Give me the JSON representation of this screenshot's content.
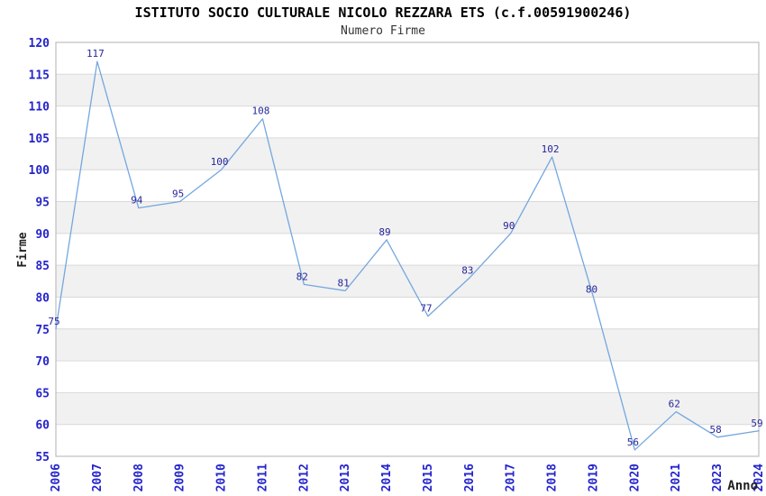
{
  "chart_data": {
    "type": "line",
    "title": "ISTITUTO SOCIO CULTURALE NICOLO REZZARA ETS (c.f.00591900246)",
    "subtitle": "Numero Firme",
    "xlabel": "Anno",
    "ylabel": "Firme",
    "categories": [
      "2006",
      "2007",
      "2008",
      "2009",
      "2010",
      "2011",
      "2012",
      "2013",
      "2014",
      "2015",
      "2016",
      "2017",
      "2018",
      "2019",
      "2020",
      "2021",
      "2023",
      "2024"
    ],
    "values": [
      75,
      117,
      94,
      95,
      100,
      108,
      82,
      81,
      89,
      77,
      83,
      90,
      102,
      80,
      56,
      62,
      58,
      59
    ],
    "ylim": [
      55,
      120
    ],
    "ytick_step": 5,
    "grid": true,
    "legend": "none",
    "band_pattern": "alternating horizontal stripes starting white at 55-60",
    "colors": {
      "title": "#000000",
      "subtitle": "#333333",
      "line": "#74a7de",
      "point_label": "#26269b",
      "tick_label": "#2424cc",
      "axis_title": "#222222",
      "band": "#f1f1f1",
      "gridline": "#d9d9d9",
      "border": "#bdbdbd",
      "background": "#ffffff"
    }
  }
}
